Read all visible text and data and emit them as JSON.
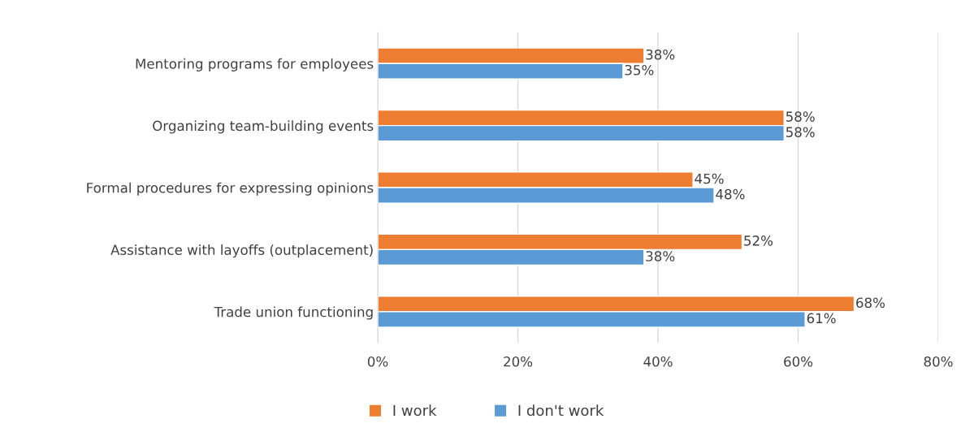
{
  "chart_data": {
    "type": "bar",
    "orientation": "horizontal",
    "categories": [
      "Mentoring programs for employees",
      "Organizing team-building events",
      "Formal procedures for expressing opinions",
      "Assistance with layoffs (outplacement)",
      "Trade union functioning"
    ],
    "series": [
      {
        "name": "I work",
        "color": "#ed7d31",
        "values": [
          38,
          58,
          45,
          52,
          68
        ],
        "value_labels": [
          "38%",
          "58%",
          "45%",
          "52%",
          "68%"
        ]
      },
      {
        "name": "I don't work",
        "color": "#5b9bd5",
        "values": [
          35,
          58,
          48,
          38,
          61
        ],
        "value_labels": [
          "35%",
          "58%",
          "48%",
          "38%",
          "61%"
        ]
      }
    ],
    "xlim": [
      0,
      80
    ],
    "xticks": [
      {
        "value": 0,
        "label": "0%"
      },
      {
        "value": 20,
        "label": "20%"
      },
      {
        "value": 40,
        "label": "40%"
      },
      {
        "value": 60,
        "label": "60%"
      },
      {
        "value": 80,
        "label": "80%"
      }
    ],
    "grid": "x",
    "legend": "bottom"
  }
}
